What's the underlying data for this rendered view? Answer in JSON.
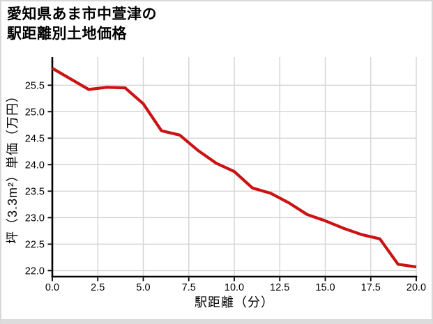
{
  "chart_data": {
    "type": "line",
    "title": "愛知県あま市中萱津の駅距離別土地価格",
    "title_lines": [
      "愛知県あま市中萱津の",
      "駅距離別土地価格"
    ],
    "xlabel": "駅距離（分）",
    "ylabel": "坪（3.3m²）単価（万円）",
    "x": [
      0,
      1,
      2,
      3,
      4,
      5,
      6,
      7,
      8,
      9,
      10,
      11,
      12,
      13,
      14,
      15,
      16,
      17,
      18,
      19,
      20
    ],
    "y": [
      25.82,
      25.62,
      25.42,
      25.46,
      25.45,
      25.15,
      24.64,
      24.56,
      24.27,
      24.03,
      23.87,
      23.56,
      23.46,
      23.28,
      23.06,
      22.94,
      22.8,
      22.68,
      22.6,
      22.12,
      22.07
    ],
    "xlim": [
      0,
      20
    ],
    "ylim": [
      21.9,
      26.03
    ],
    "x_ticks": [
      0,
      2.5,
      5,
      7.5,
      10,
      12.5,
      15,
      17.5,
      20
    ],
    "x_tick_labels": [
      "0.0",
      "2.5",
      "5.0",
      "7.5",
      "10.0",
      "12.5",
      "15.0",
      "17.5",
      "20.0"
    ],
    "y_ticks": [
      22,
      22.5,
      23,
      23.5,
      24,
      24.5,
      25,
      25.5
    ],
    "y_tick_labels": [
      "22.0",
      "22.5",
      "23.0",
      "23.5",
      "24.0",
      "24.5",
      "25.0",
      "25.5"
    ],
    "grid": true,
    "legend": "none"
  },
  "colors": {
    "background": "#ffffff",
    "border": "#d8d8d8",
    "grid": "#d4d4d4",
    "axis": "#000000",
    "text": "#000000",
    "line": "#cc1212"
  }
}
